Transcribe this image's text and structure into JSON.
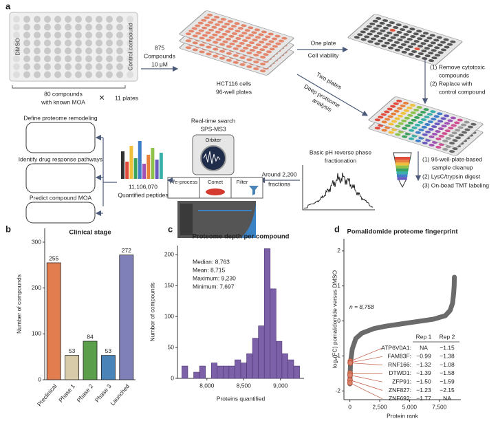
{
  "panel_a": {
    "label": "a",
    "plate": {
      "left": "DMSO",
      "right": "Control compound"
    },
    "library": [
      "80 compounds",
      "with known MOA"
    ],
    "times": "×",
    "plates": "11 plates",
    "treatment": [
      "875",
      "Compounds",
      "10 μM"
    ],
    "cells": [
      "HCT116 cells",
      "96-well plates"
    ],
    "viability": [
      "One plate",
      "Cell viability"
    ],
    "viability_steps": [
      "(1) Remove cytotoxic",
      "compounds",
      "(2) Replace with",
      "control compound"
    ],
    "deep": [
      "Two plates",
      "Deep proteome",
      "analysis"
    ],
    "prep_steps": [
      "(1) 96-well-plate-based",
      "sample cleanup",
      "(2) LysC/trypsin digest",
      "(3) On-bead TMT labeling"
    ],
    "fractionation": [
      "Basic pH reverse phase",
      "fractionation"
    ],
    "fractions": [
      "Around 2,200",
      "fractions"
    ],
    "ms": [
      "Real-time search",
      "SPS-MS3"
    ],
    "orbiter": "Orbiter",
    "search_steps": [
      "Pre-process",
      "Comet",
      "Filter"
    ],
    "peptides": [
      "11,106,070",
      "Quantified peptides"
    ],
    "applications": [
      "Define proteome remodeling",
      "Identify drug response pathways",
      "Predict compound MOA"
    ]
  },
  "chart_data": [
    {
      "type": "bar",
      "label": "b",
      "title": "Clinical stage",
      "ylabel": "Number of compounds",
      "categories": [
        "Preclinical",
        "Phase 1",
        "Phase 2",
        "Phase 3",
        "Launched"
      ],
      "values": [
        255,
        53,
        84,
        53,
        272
      ],
      "colors": [
        "#e27d50",
        "#d8cba9",
        "#5a9d4a",
        "#4a83b8",
        "#8080b8"
      ],
      "ylim": [
        0,
        330
      ],
      "yticks": [
        0,
        100,
        200,
        300
      ]
    },
    {
      "type": "histogram",
      "label": "c",
      "title": "Proteome depth per compound",
      "xlabel": "Proteins quantified",
      "ylabel": "Number of compounds",
      "annotations": [
        "Median: 8,763",
        "Mean: 8,715",
        "Maximum: 9,230",
        "Minimum: 7,697"
      ],
      "bins": [
        7660,
        7740,
        7820,
        7900,
        7980,
        8060,
        8140,
        8220,
        8300,
        8380,
        8460,
        8540,
        8620,
        8700,
        8780,
        8860,
        8940,
        9020,
        9100,
        9180,
        9260
      ],
      "values": [
        20,
        0,
        10,
        20,
        0,
        25,
        20,
        20,
        20,
        30,
        25,
        40,
        65,
        85,
        210,
        145,
        60,
        40,
        30,
        20
      ],
      "color": "#7d61a8",
      "xlim": [
        7600,
        9320
      ],
      "xticks": [
        {
          "value": 8000,
          "label": "8,000"
        },
        {
          "value": 8500,
          "label": "8,500"
        },
        {
          "value": 9000,
          "label": "9,000"
        }
      ],
      "ylim": [
        0,
        215
      ],
      "yticks": [
        0,
        50,
        100,
        150,
        200
      ]
    },
    {
      "type": "scatter",
      "label": "d",
      "title": "Pomalidomide proteome fingerprint",
      "xlabel": "Protein rank",
      "ylabel": "log₂(FC) pomalidomide versus DMSO",
      "annotation": "n = 8,758",
      "series": [
        {
          "color": "#6b6b6b",
          "x": [
            0,
            50,
            200,
            500,
            1000,
            2000,
            3000,
            4000,
            5000,
            6000,
            7000,
            8000,
            8400,
            8600,
            8700,
            8740,
            8758
          ],
          "values": [
            -1.8,
            -1.2,
            -0.8,
            -0.5,
            -0.35,
            -0.22,
            -0.15,
            -0.1,
            -0.05,
            0,
            0.05,
            0.15,
            0.3,
            0.5,
            0.8,
            1.0,
            1.25
          ]
        },
        {
          "color": "#c0553a",
          "x": [
            40,
            35,
            30,
            20,
            15,
            10,
            5
          ],
          "values": [
            -1.15,
            -1.19,
            -1.2,
            -1.49,
            -1.55,
            -1.69,
            -1.77
          ]
        }
      ],
      "table": {
        "header": [
          "Rep 1",
          "Rep 2"
        ],
        "rows": [
          [
            "ATP6V0A1:",
            "NA",
            "−1.15"
          ],
          [
            "FAM83F:",
            "−0.99",
            "−1.38"
          ],
          [
            "RNF166:",
            "−1.32",
            "−1.08"
          ],
          [
            "DTWD1:",
            "−1.39",
            "−1.58"
          ],
          [
            "ZFP91:",
            "−1.50",
            "−1.59"
          ],
          [
            "ZNF827:",
            "−1.23",
            "−2.15"
          ],
          [
            "ZNF692:",
            "−1.77",
            "NA"
          ]
        ]
      },
      "xlim": [
        -500,
        9300
      ],
      "xticks": [
        0,
        {
          "value": 2500,
          "label": "2,500"
        },
        {
          "value": 5000,
          "label": "5,000"
        },
        {
          "value": 7500,
          "label": "7,500"
        }
      ],
      "ylim": [
        -2.25,
        2.35
      ],
      "yticks": [
        -2,
        -1,
        0,
        1,
        2
      ]
    }
  ]
}
